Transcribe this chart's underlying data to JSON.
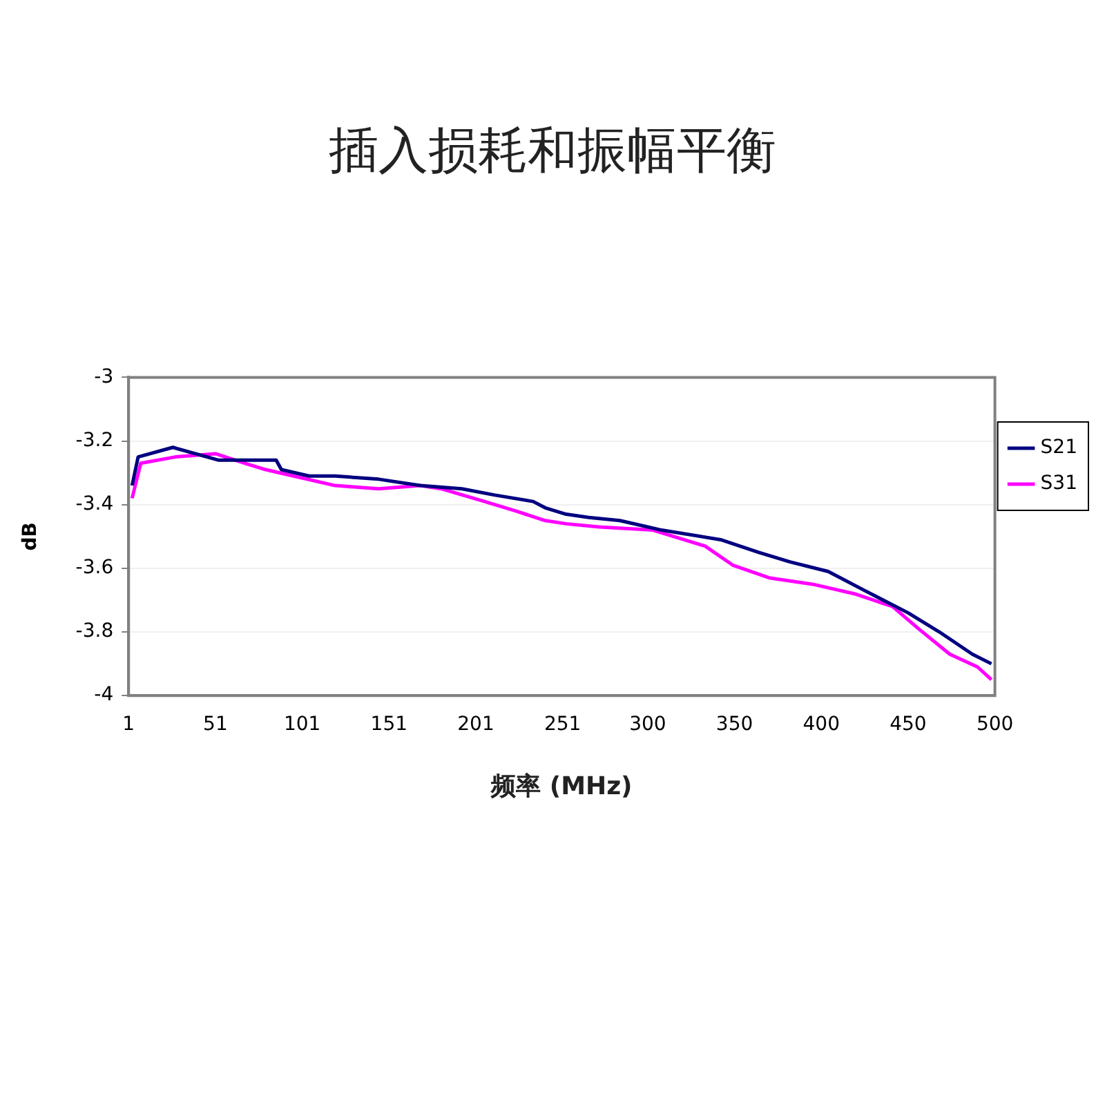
{
  "chart_data": {
    "type": "line",
    "title": "插入损耗和振幅平衡",
    "xlabel": "频率 (MHz)",
    "ylabel": "dB",
    "xlim": [
      1,
      500
    ],
    "xticks": [
      1,
      51,
      101,
      151,
      201,
      251,
      300,
      350,
      400,
      450,
      500
    ],
    "ylim": [
      -4,
      -3
    ],
    "yticks": [
      -4,
      -3.8,
      -3.6,
      -3.4,
      -3.2,
      -3
    ],
    "grid": "y",
    "legend": "right",
    "marker": "none",
    "line_style": "solid",
    "series": [
      {
        "name": "S21",
        "color": "#000080",
        "x": [
          3,
          6.5,
          26.5,
          52.6,
          86,
          89,
          105,
          120,
          145,
          169,
          193,
          212,
          234,
          241,
          253,
          266,
          284,
          308,
          342,
          364,
          382,
          404,
          425,
          450,
          468,
          487,
          498
        ],
        "values": [
          -3.34,
          -3.25,
          -3.22,
          -3.26,
          -3.26,
          -3.29,
          -3.31,
          -3.31,
          -3.32,
          -3.34,
          -3.35,
          -3.37,
          -3.39,
          -3.41,
          -3.43,
          -3.44,
          -3.45,
          -3.48,
          -3.51,
          -3.55,
          -3.58,
          -3.61,
          -3.67,
          -3.74,
          -3.8,
          -3.87,
          -3.9
        ]
      },
      {
        "name": "S31",
        "color": "#ff00ff",
        "x": [
          3,
          8,
          28,
          51,
          68,
          80,
          96,
          120,
          145,
          169,
          181,
          206,
          224,
          241,
          253,
          272,
          303,
          333,
          349,
          370,
          395,
          419,
          441,
          456,
          474,
          490,
          498
        ],
        "values": [
          -3.38,
          -3.27,
          -3.25,
          -3.24,
          -3.27,
          -3.29,
          -3.31,
          -3.34,
          -3.35,
          -3.34,
          -3.35,
          -3.39,
          -3.42,
          -3.45,
          -3.46,
          -3.47,
          -3.48,
          -3.53,
          -3.59,
          -3.63,
          -3.65,
          -3.68,
          -3.72,
          -3.79,
          -3.87,
          -3.91,
          -3.95
        ]
      }
    ]
  }
}
